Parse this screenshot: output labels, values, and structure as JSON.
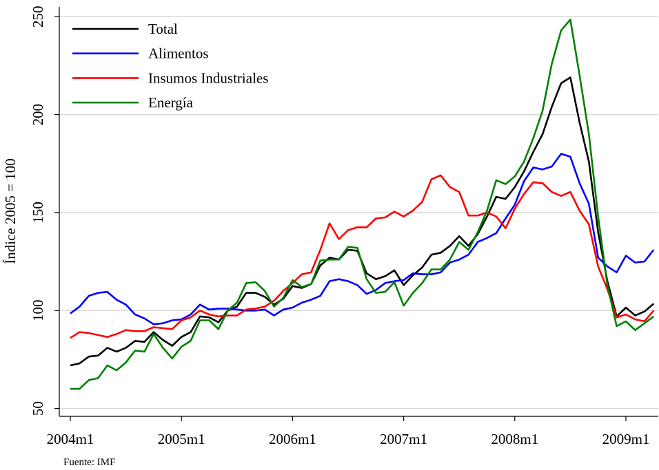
{
  "chart_data": {
    "type": "line",
    "x": [
      "2004m1",
      null,
      null,
      null,
      null,
      null,
      null,
      null,
      null,
      null,
      null,
      null,
      "2005m1",
      null,
      null,
      null,
      null,
      null,
      null,
      null,
      null,
      null,
      null,
      null,
      "2006m1",
      null,
      null,
      null,
      null,
      null,
      null,
      null,
      null,
      null,
      null,
      null,
      "2007m1",
      null,
      null,
      null,
      null,
      null,
      null,
      null,
      null,
      null,
      null,
      null,
      "2008m1",
      null,
      null,
      null,
      null,
      null,
      null,
      null,
      null,
      null,
      null,
      null,
      "2009m1",
      null,
      null,
      null
    ],
    "y_label": "Índice 2005 = 100",
    "note": "Fuente: IMF",
    "ylim": [
      46,
      255
    ],
    "yticks": [
      50,
      100,
      150,
      200,
      250
    ],
    "grid": true,
    "legend": "top-left",
    "series": [
      {
        "name": "Total",
        "color": "#000000",
        "values": [
          72,
          73,
          76.5,
          77,
          81,
          79,
          81,
          84.5,
          84,
          89,
          85,
          82,
          86.5,
          89,
          97,
          96.5,
          94,
          100,
          102,
          109,
          109,
          107,
          103,
          106,
          112.5,
          111.5,
          113.5,
          123,
          127,
          126,
          131,
          130.5,
          119,
          116,
          117.5,
          120.5,
          113,
          118,
          122,
          128.5,
          129.5,
          133,
          138,
          133,
          139,
          148,
          158,
          157,
          163,
          171,
          181,
          190,
          204,
          216,
          219,
          196,
          176,
          140,
          115,
          97,
          101.5,
          97.5,
          99.5,
          103.5
        ]
      },
      {
        "name": "Alimentos",
        "color": "#0000ff",
        "values": [
          98.5,
          102,
          107.5,
          109,
          109.5,
          105.5,
          103,
          98,
          96,
          93,
          93.5,
          95,
          95.5,
          98,
          103,
          100.5,
          101,
          101,
          100.5,
          100,
          100,
          100.5,
          97.5,
          100.5,
          101.5,
          104,
          105.5,
          107.5,
          115,
          116,
          115,
          113,
          108.5,
          110.5,
          114,
          115,
          115.5,
          119,
          118.5,
          118.5,
          119.5,
          124.5,
          126,
          128.5,
          135,
          137,
          139.5,
          147,
          154,
          166,
          173,
          172,
          173.5,
          180,
          178.5,
          165,
          154.5,
          127,
          122.5,
          119.5,
          128,
          124.5,
          125,
          131
        ]
      },
      {
        "name": "Insumos Industriales",
        "color": "#ff0000",
        "values": [
          86,
          89,
          88.5,
          87.5,
          86.5,
          88,
          90,
          89.5,
          89.5,
          91.5,
          91,
          90.5,
          95,
          96.5,
          100,
          98,
          97,
          97.5,
          97.5,
          100.5,
          101,
          102,
          105,
          110,
          114,
          118.5,
          119.5,
          131,
          144.5,
          136.5,
          141,
          142.5,
          142.5,
          147,
          147.5,
          150.5,
          148,
          151,
          155.5,
          167,
          169,
          163,
          160.5,
          148.5,
          148.5,
          150,
          148,
          142,
          152,
          159.5,
          165.5,
          165,
          160.5,
          158.5,
          160.5,
          151,
          144,
          122.5,
          111,
          96.5,
          98,
          95.5,
          94.5,
          100
        ]
      },
      {
        "name": "Energía",
        "color": "#008000",
        "values": [
          60,
          60,
          64.5,
          65.5,
          72,
          69.5,
          73.5,
          79.5,
          79,
          88,
          81,
          75.5,
          81.5,
          84.5,
          95,
          95,
          90.5,
          100,
          104,
          114,
          114.5,
          110,
          102,
          106.5,
          115.5,
          112,
          113.5,
          125.5,
          126,
          126,
          132.5,
          132,
          116,
          109,
          109.5,
          114.5,
          102.5,
          109,
          114,
          121,
          121,
          126,
          135,
          131,
          140,
          151,
          166.5,
          164.5,
          168.5,
          176,
          188,
          202,
          226,
          243,
          248.5,
          220,
          190,
          148,
          113,
          92,
          94.5,
          90,
          93.5,
          97
        ]
      }
    ]
  }
}
